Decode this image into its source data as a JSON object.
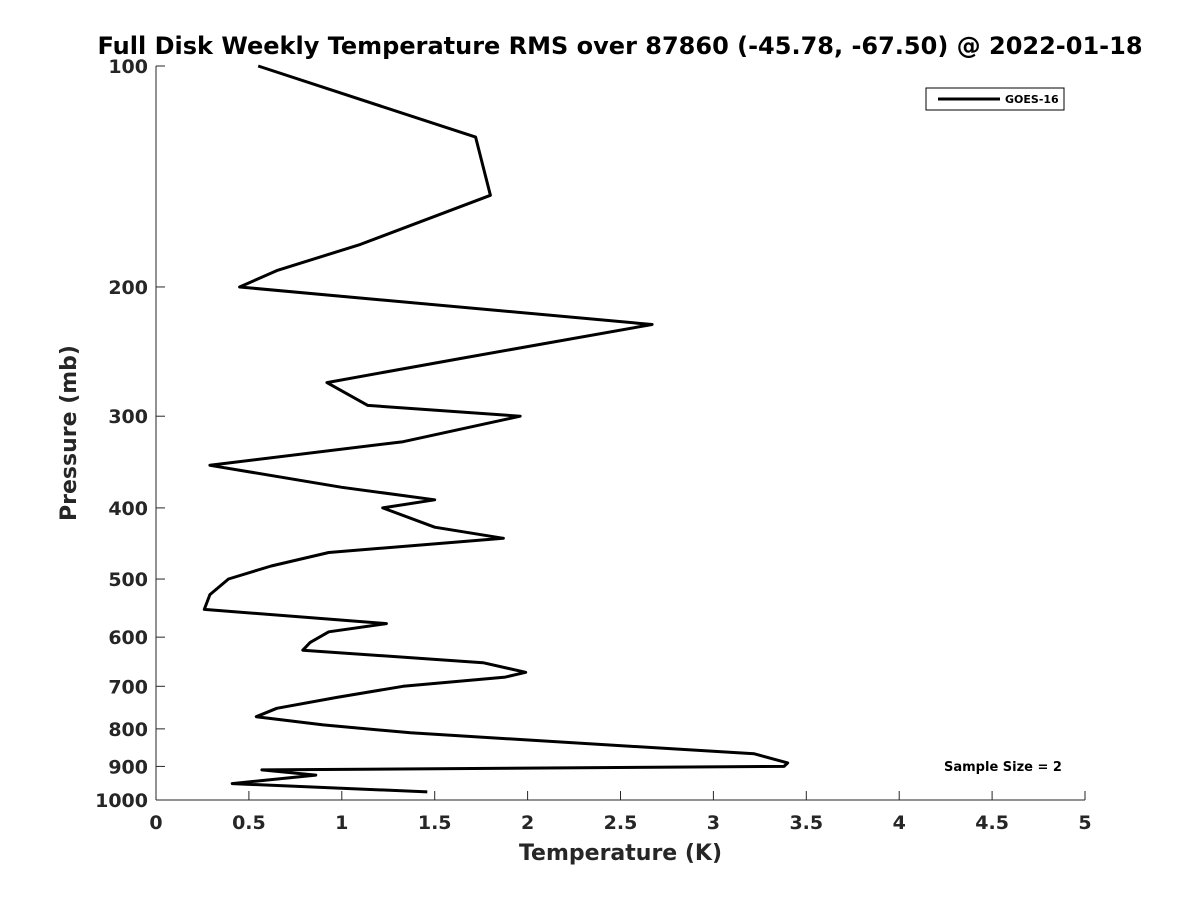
{
  "chart_data": {
    "type": "line",
    "title": "Full Disk Weekly Temperature RMS over 87860 (-45.78, -67.50) @ 2022-01-18",
    "xlabel": "Temperature (K)",
    "ylabel": "Pressure (mb)",
    "xlim": [
      0,
      5
    ],
    "ylim": [
      100,
      1000
    ],
    "yscale": "log",
    "y_reversed": true,
    "x_ticks": [
      0,
      0.5,
      1,
      1.5,
      2,
      2.5,
      3,
      3.5,
      4,
      4.5,
      5
    ],
    "x_tick_labels": [
      "0",
      "0.5",
      "1",
      "1.5",
      "2",
      "2.5",
      "3",
      "3.5",
      "4",
      "4.5",
      "5"
    ],
    "y_ticks": [
      100,
      200,
      300,
      400,
      500,
      600,
      700,
      800,
      900,
      1000
    ],
    "y_tick_labels": [
      "100",
      "200",
      "300",
      "400",
      "500",
      "600",
      "700",
      "800",
      "900",
      "1000"
    ],
    "grid": false,
    "legend_position": "top-right",
    "annotation": "Sample Size = 2",
    "series": [
      {
        "name": "GOES-16",
        "color": "#000000",
        "points": [
          [
            0.55,
            100
          ],
          [
            1.72,
            125
          ],
          [
            1.8,
            150
          ],
          [
            1.1,
            175
          ],
          [
            0.65,
            190
          ],
          [
            0.45,
            200
          ],
          [
            2.67,
            225
          ],
          [
            1.65,
            250
          ],
          [
            0.92,
            270
          ],
          [
            1.14,
            290
          ],
          [
            1.96,
            300
          ],
          [
            1.33,
            325
          ],
          [
            0.29,
            350
          ],
          [
            1.0,
            375
          ],
          [
            1.5,
            390
          ],
          [
            1.22,
            400
          ],
          [
            1.5,
            425
          ],
          [
            1.87,
            440
          ],
          [
            0.93,
            460
          ],
          [
            0.62,
            480
          ],
          [
            0.39,
            500
          ],
          [
            0.29,
            525
          ],
          [
            0.26,
            550
          ],
          [
            1.24,
            575
          ],
          [
            0.93,
            590
          ],
          [
            0.83,
            610
          ],
          [
            0.79,
            625
          ],
          [
            1.76,
            650
          ],
          [
            1.99,
            670
          ],
          [
            1.88,
            680
          ],
          [
            1.33,
            700
          ],
          [
            0.97,
            725
          ],
          [
            0.65,
            750
          ],
          [
            0.54,
            770
          ],
          [
            0.9,
            790
          ],
          [
            1.37,
            810
          ],
          [
            3.22,
            865
          ],
          [
            3.4,
            890
          ],
          [
            3.38,
            900
          ],
          [
            0.57,
            910
          ],
          [
            0.86,
            925
          ],
          [
            0.41,
            950
          ],
          [
            1.46,
            975
          ]
        ]
      }
    ]
  }
}
